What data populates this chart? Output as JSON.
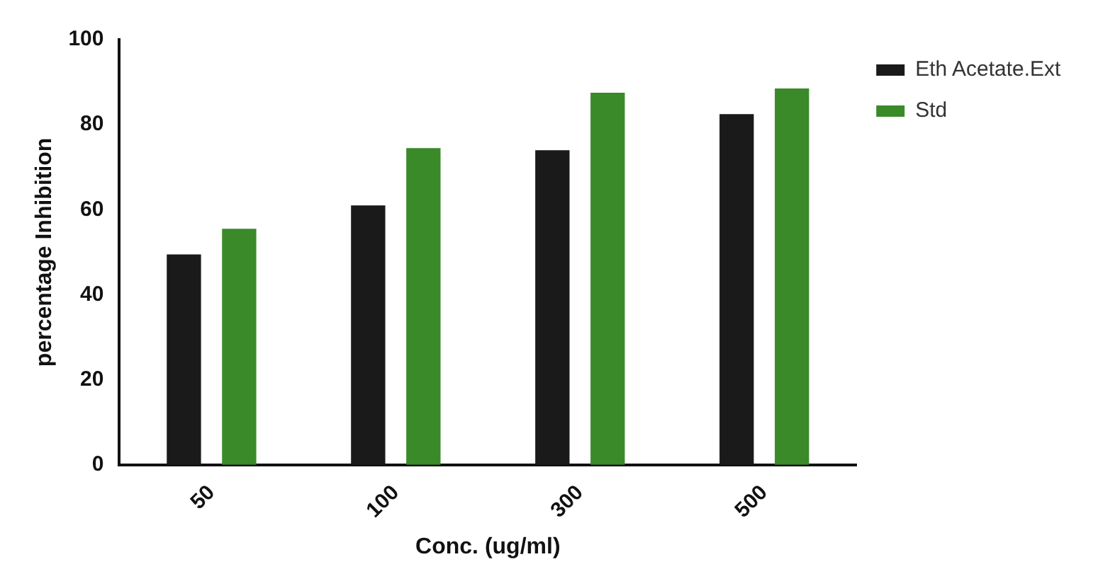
{
  "chart_data": {
    "type": "bar",
    "xlabel": "Conc. (ug/ml)",
    "ylabel": "percentage Inhibition",
    "categories": [
      "50",
      "100",
      "300",
      "500"
    ],
    "series": [
      {
        "name": "Eth Acetate.Ext",
        "color": "#1a1a1a",
        "values": [
          49.5,
          61,
          74,
          82.5
        ]
      },
      {
        "name": "Std",
        "color": "#3a8a2a",
        "values": [
          55.5,
          74.5,
          87.5,
          88.5
        ]
      }
    ],
    "ylim": [
      0,
      100
    ],
    "yticks": [
      0,
      20,
      40,
      60,
      80,
      100
    ],
    "grid": false,
    "legend": "top right"
  }
}
